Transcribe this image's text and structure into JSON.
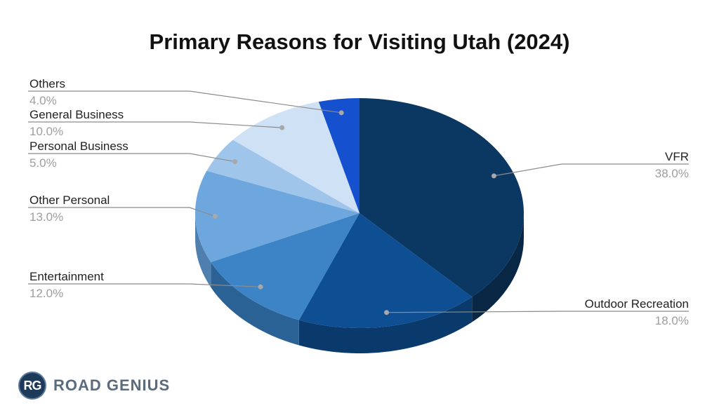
{
  "chart_data": {
    "type": "pie",
    "style": "3d",
    "title": "Primary Reasons for Visiting Utah (2024)",
    "start_angle_deg": 0,
    "direction": "clockwise",
    "slices": [
      {
        "label": "VFR",
        "value": 38.0,
        "display": "38.0%",
        "color": "#0b3763",
        "side_color": "#082744",
        "label_side": "right"
      },
      {
        "label": "Outdoor Recreation",
        "value": 18.0,
        "display": "18.0%",
        "color": "#0e4e92",
        "side_color": "#0a3a6c",
        "label_side": "right"
      },
      {
        "label": "Entertainment",
        "value": 12.0,
        "display": "12.0%",
        "color": "#3d84c6",
        "side_color": "#2b6296",
        "label_side": "left"
      },
      {
        "label": "Other Personal",
        "value": 13.0,
        "display": "13.0%",
        "color": "#6da7de",
        "side_color": "#4f7fae",
        "label_side": "left"
      },
      {
        "label": "Personal Business",
        "value": 5.0,
        "display": "5.0%",
        "color": "#9fc5ea",
        "side_color": "#7b9fc4",
        "label_side": "left"
      },
      {
        "label": "General Business",
        "value": 10.0,
        "display": "10.0%",
        "color": "#cfe2f5",
        "side_color": "#a9c0d9",
        "label_side": "left"
      },
      {
        "label": "Others",
        "value": 4.0,
        "display": "4.0%",
        "color": "#1551cf",
        "side_color": "#0f3c9b",
        "label_side": "left"
      }
    ]
  },
  "brand": {
    "badge": "RG",
    "name": "ROAD GENIUS"
  }
}
